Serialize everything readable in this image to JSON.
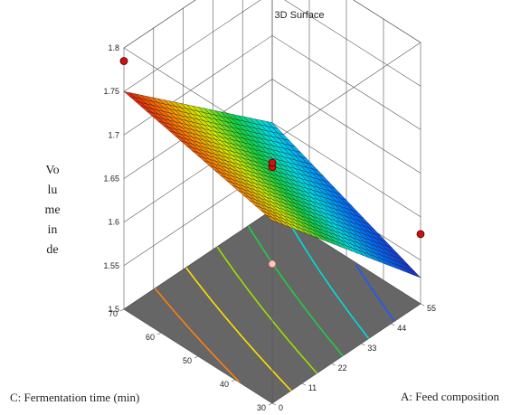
{
  "chart_data": {
    "type": "surface",
    "title": "3D Surface",
    "zlabel_lines": [
      "Vo",
      "lu",
      "me",
      "in",
      "de"
    ],
    "xlabel": "A: Feed composition",
    "ylabel": "C: Fermentation time (min)",
    "x_ticks": [
      "0",
      "11",
      "22",
      "33",
      "44",
      "55"
    ],
    "y_ticks": [
      "30",
      "40",
      "50",
      "60",
      "70"
    ],
    "z_ticks": [
      "1.5",
      "1.55",
      "1.6",
      "1.65",
      "1.7",
      "1.75",
      "1.8"
    ],
    "xlim": [
      0,
      55
    ],
    "ylim": [
      30,
      70
    ],
    "zlim": [
      1.5,
      1.8
    ],
    "surface_corners": {
      "x0_y30": 1.71,
      "x55_y30": 1.53,
      "x0_y70": 1.75,
      "x55_y70": 1.6
    },
    "design_points": [
      {
        "x": 27.5,
        "y": 50,
        "z": 1.66,
        "side": "above"
      },
      {
        "x": 27.5,
        "y": 50,
        "z": 1.665,
        "side": "above"
      },
      {
        "x": 0,
        "y": 70,
        "z": 1.785,
        "side": "above"
      },
      {
        "x": 55,
        "y": 30,
        "z": 1.58,
        "side": "above"
      },
      {
        "x": 0,
        "y": 30,
        "z": 1.66,
        "side": "below"
      },
      {
        "x": 55,
        "y": 70,
        "z": 1.55,
        "side": "below"
      }
    ],
    "contour_colors": [
      "#ff7f0e",
      "#ffe000",
      "#9be000",
      "#22cc44",
      "#00dddd",
      "#2255ff"
    ],
    "floor_color": "#666666"
  }
}
